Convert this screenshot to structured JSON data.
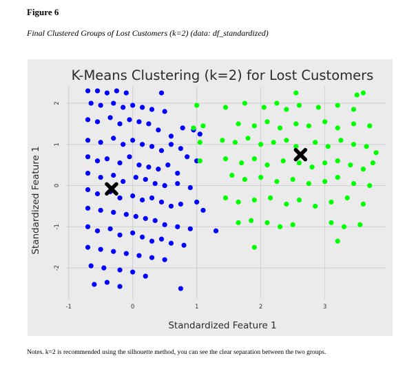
{
  "figure": {
    "label": "Figure 6",
    "caption": "Final Clustered Groups of Lost Customers (k=2) (data: df_standardized)",
    "notes": "Notes. k=2 is recommended using the silhouette method, you can see the clear separation between the two groups."
  },
  "chart_data": {
    "type": "scatter",
    "title": "K-Means Clustering (k=2) for Lost Customers",
    "xlabel": "Standardized Feature 1",
    "ylabel": "Standardized Feature 1",
    "xlim": [
      -1.05,
      3.95
    ],
    "ylim": [
      -2.75,
      2.4
    ],
    "x_ticks": [
      -1,
      0,
      1,
      2,
      3
    ],
    "x_tick_labels": [
      "-1",
      "0",
      "1",
      "2",
      "3"
    ],
    "y_ticks": [
      -2,
      -1,
      0,
      1,
      2
    ],
    "y_tick_labels": [
      "-2",
      "-1",
      "0",
      "1",
      "2"
    ],
    "grid": true,
    "background": "#ebebeb",
    "series": [
      {
        "color": "#0000ff",
        "values": [
          [
            -0.7,
            2.3
          ],
          [
            -0.55,
            2.3
          ],
          [
            -0.4,
            2.25
          ],
          [
            -0.25,
            2.3
          ],
          [
            -0.1,
            2.25
          ],
          [
            0.45,
            2.25
          ],
          [
            -0.65,
            2.0
          ],
          [
            -0.5,
            1.95
          ],
          [
            -0.3,
            2.0
          ],
          [
            -0.15,
            1.9
          ],
          [
            0.0,
            1.95
          ],
          [
            0.15,
            1.9
          ],
          [
            0.3,
            1.85
          ],
          [
            0.5,
            1.8
          ],
          [
            -0.7,
            1.6
          ],
          [
            -0.55,
            1.55
          ],
          [
            -0.35,
            1.65
          ],
          [
            -0.2,
            1.5
          ],
          [
            -0.05,
            1.6
          ],
          [
            0.1,
            1.55
          ],
          [
            0.25,
            1.5
          ],
          [
            0.4,
            1.35
          ],
          [
            0.6,
            1.2
          ],
          [
            0.78,
            1.4
          ],
          [
            0.95,
            1.35
          ],
          [
            1.05,
            1.25
          ],
          [
            -0.7,
            1.1
          ],
          [
            -0.5,
            1.05
          ],
          [
            -0.3,
            1.15
          ],
          [
            -0.15,
            1.0
          ],
          [
            0.0,
            1.1
          ],
          [
            0.15,
            1.0
          ],
          [
            0.3,
            0.95
          ],
          [
            0.45,
            0.85
          ],
          [
            0.6,
            1.0
          ],
          [
            0.75,
            0.9
          ],
          [
            0.85,
            0.7
          ],
          [
            1.0,
            0.6
          ],
          [
            -0.7,
            0.7
          ],
          [
            -0.55,
            0.6
          ],
          [
            -0.4,
            0.65
          ],
          [
            -0.2,
            0.55
          ],
          [
            -0.05,
            0.7
          ],
          [
            0.1,
            0.5
          ],
          [
            0.25,
            0.45
          ],
          [
            0.4,
            0.4
          ],
          [
            0.55,
            0.5
          ],
          [
            0.7,
            0.3
          ],
          [
            -0.7,
            0.3
          ],
          [
            -0.5,
            0.2
          ],
          [
            -0.3,
            0.25
          ],
          [
            -0.15,
            0.1
          ],
          [
            0.05,
            0.2
          ],
          [
            0.2,
            0.15
          ],
          [
            0.35,
            0.05
          ],
          [
            0.5,
            0.0
          ],
          [
            0.7,
            0.05
          ],
          [
            0.9,
            -0.05
          ],
          [
            -0.7,
            -0.1
          ],
          [
            -0.55,
            -0.2
          ],
          [
            -0.35,
            -0.15
          ],
          [
            -0.2,
            -0.3
          ],
          [
            0.0,
            -0.25
          ],
          [
            0.15,
            -0.35
          ],
          [
            0.3,
            -0.3
          ],
          [
            0.45,
            -0.4
          ],
          [
            0.6,
            -0.5
          ],
          [
            0.75,
            -0.45
          ],
          [
            1.0,
            -0.4
          ],
          [
            1.1,
            -0.6
          ],
          [
            -0.7,
            -0.55
          ],
          [
            -0.5,
            -0.6
          ],
          [
            -0.3,
            -0.65
          ],
          [
            -0.1,
            -0.7
          ],
          [
            0.05,
            -0.75
          ],
          [
            0.2,
            -0.8
          ],
          [
            0.35,
            -0.85
          ],
          [
            0.5,
            -0.95
          ],
          [
            0.7,
            -1.0
          ],
          [
            0.9,
            -1.05
          ],
          [
            1.3,
            -1.1
          ],
          [
            -0.7,
            -1.0
          ],
          [
            -0.55,
            -1.1
          ],
          [
            -0.35,
            -1.05
          ],
          [
            -0.2,
            -1.2
          ],
          [
            0.0,
            -1.15
          ],
          [
            0.15,
            -1.25
          ],
          [
            0.3,
            -1.35
          ],
          [
            0.45,
            -1.3
          ],
          [
            0.6,
            -1.4
          ],
          [
            0.8,
            -1.45
          ],
          [
            -0.7,
            -1.5
          ],
          [
            -0.5,
            -1.55
          ],
          [
            -0.3,
            -1.6
          ],
          [
            -0.1,
            -1.65
          ],
          [
            0.1,
            -1.7
          ],
          [
            0.3,
            -1.75
          ],
          [
            0.5,
            -1.8
          ],
          [
            -0.65,
            -1.95
          ],
          [
            -0.45,
            -2.0
          ],
          [
            -0.2,
            -2.05
          ],
          [
            0.0,
            -2.1
          ],
          [
            0.2,
            -2.2
          ],
          [
            -0.6,
            -2.4
          ],
          [
            -0.4,
            -2.35
          ],
          [
            -0.2,
            -2.45
          ],
          [
            0.75,
            -2.5
          ]
        ]
      },
      {
        "color": "#00ff00",
        "values": [
          [
            2.55,
            2.25
          ],
          [
            3.5,
            2.2
          ],
          [
            3.6,
            2.25
          ],
          [
            1.0,
            1.95
          ],
          [
            1.45,
            1.9
          ],
          [
            1.75,
            2.0
          ],
          [
            2.05,
            1.9
          ],
          [
            2.25,
            2.0
          ],
          [
            2.4,
            1.85
          ],
          [
            2.6,
            1.95
          ],
          [
            2.9,
            1.9
          ],
          [
            3.2,
            1.95
          ],
          [
            3.45,
            1.85
          ],
          [
            0.95,
            1.4
          ],
          [
            1.1,
            1.45
          ],
          [
            1.65,
            1.5
          ],
          [
            1.9,
            1.45
          ],
          [
            2.1,
            1.55
          ],
          [
            2.3,
            1.4
          ],
          [
            2.55,
            1.5
          ],
          [
            2.75,
            1.45
          ],
          [
            3.0,
            1.55
          ],
          [
            3.2,
            1.4
          ],
          [
            3.45,
            1.5
          ],
          [
            3.7,
            1.45
          ],
          [
            1.05,
            1.05
          ],
          [
            1.4,
            1.1
          ],
          [
            1.6,
            1.05
          ],
          [
            1.8,
            1.15
          ],
          [
            2.0,
            1.0
          ],
          [
            2.2,
            1.05
          ],
          [
            2.4,
            1.1
          ],
          [
            2.55,
            0.95
          ],
          [
            2.85,
            1.05
          ],
          [
            3.05,
            0.95
          ],
          [
            3.25,
            1.1
          ],
          [
            3.45,
            1.0
          ],
          [
            3.65,
            0.95
          ],
          [
            3.8,
            0.8
          ],
          [
            1.05,
            0.6
          ],
          [
            1.45,
            0.65
          ],
          [
            1.7,
            0.55
          ],
          [
            1.9,
            0.65
          ],
          [
            2.1,
            0.5
          ],
          [
            2.35,
            0.6
          ],
          [
            2.6,
            0.55
          ],
          [
            2.8,
            0.45
          ],
          [
            3.0,
            0.55
          ],
          [
            3.2,
            0.6
          ],
          [
            3.4,
            0.5
          ],
          [
            3.6,
            0.4
          ],
          [
            3.75,
            0.55
          ],
          [
            1.55,
            0.25
          ],
          [
            1.75,
            0.15
          ],
          [
            2.0,
            0.2
          ],
          [
            2.25,
            0.1
          ],
          [
            2.5,
            0.15
          ],
          [
            2.75,
            0.05
          ],
          [
            3.0,
            0.1
          ],
          [
            3.2,
            0.2
          ],
          [
            3.45,
            0.05
          ],
          [
            3.7,
            0.0
          ],
          [
            1.45,
            -0.3
          ],
          [
            1.65,
            -0.4
          ],
          [
            1.9,
            -0.35
          ],
          [
            2.15,
            -0.3
          ],
          [
            2.4,
            -0.45
          ],
          [
            2.6,
            -0.35
          ],
          [
            2.85,
            -0.5
          ],
          [
            3.1,
            -0.4
          ],
          [
            3.35,
            -0.3
          ],
          [
            3.6,
            -0.45
          ],
          [
            1.65,
            -0.9
          ],
          [
            1.85,
            -0.85
          ],
          [
            2.1,
            -0.9
          ],
          [
            2.3,
            -1.0
          ],
          [
            2.5,
            -0.95
          ],
          [
            3.1,
            -0.9
          ],
          [
            3.3,
            -1.0
          ],
          [
            3.55,
            -0.95
          ],
          [
            1.9,
            -1.5
          ],
          [
            3.2,
            -1.35
          ]
        ]
      }
    ],
    "centroids": {
      "color": "#000000",
      "values": [
        [
          -0.33,
          -0.08
        ],
        [
          2.62,
          0.75
        ]
      ]
    }
  }
}
